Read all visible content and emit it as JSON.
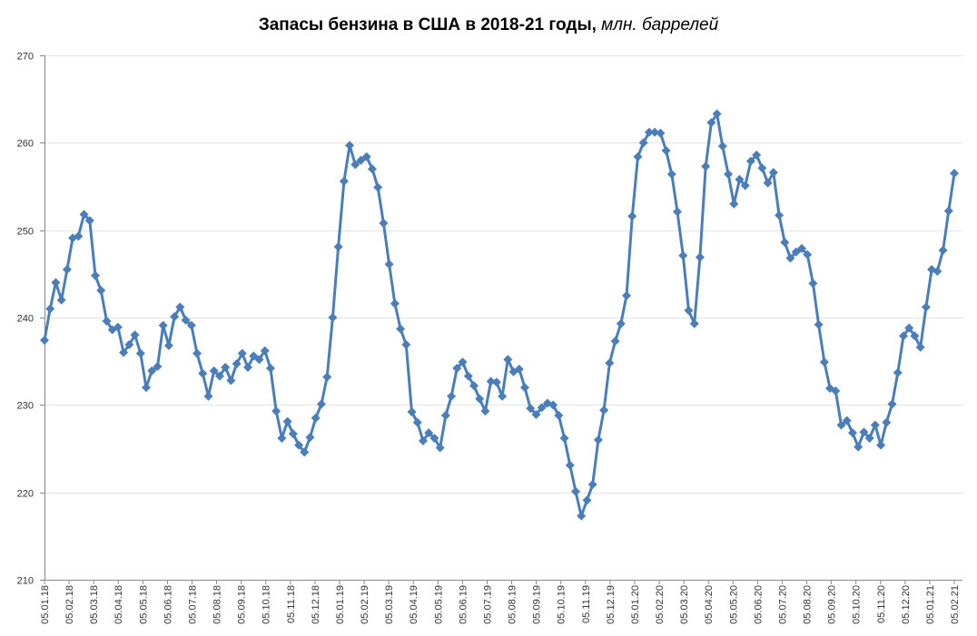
{
  "chart_data": {
    "type": "line",
    "title": "Запасы бензина в США в 2018-21 годы,",
    "title_unit": "млн. баррелей",
    "xlabel": "",
    "ylabel": "",
    "ylim": [
      210,
      270
    ],
    "yticks": [
      210,
      220,
      230,
      240,
      250,
      260,
      270
    ],
    "grid": true,
    "legend": "none",
    "color": "#4a7ebb",
    "marker": "diamond",
    "frequency": "weekly",
    "xticks": [
      "05.01.18",
      "05.02.18",
      "05.03.18",
      "05.04.18",
      "05.05.18",
      "05.06.18",
      "05.07.18",
      "05.08.18",
      "05.09.18",
      "05.10.18",
      "05.11.18",
      "05.12.18",
      "05.01.19",
      "05.02.19",
      "05.03.19",
      "05.04.19",
      "05.05.19",
      "05.06.19",
      "05.07.19",
      "05.08.19",
      "05.09.19",
      "05.10.19",
      "05.11.19",
      "05.12.19",
      "05.01.20",
      "05.02.20",
      "05.03.20",
      "05.04.20",
      "05.05.20",
      "05.06.20",
      "05.07.20",
      "05.08.20",
      "05.09.20",
      "05.10.20",
      "05.11.20",
      "05.12.20",
      "05.01.21",
      "05.02.21"
    ],
    "series": [
      {
        "name": "Запасы бензина",
        "values": [
          237.4,
          241,
          244,
          242,
          245.5,
          249.1,
          249.3,
          251.8,
          251.1,
          244.8,
          243.1,
          239.6,
          238.6,
          238.9,
          236,
          236.9,
          238,
          235.9,
          232,
          233.9,
          234.4,
          239.1,
          236.8,
          240.1,
          241.2,
          239.7,
          239.1,
          235.9,
          233.6,
          231,
          233.9,
          233.3,
          234.3,
          232.8,
          234.7,
          235.9,
          234.3,
          235.6,
          235.2,
          236.2,
          234.2,
          229.3,
          226.2,
          228.1,
          226.7,
          225.4,
          224.6,
          226.3,
          228.5,
          230.1,
          233.2,
          240,
          248.1,
          255.6,
          259.7,
          257.5,
          258,
          258.4,
          257,
          254.9,
          250.8,
          246.1,
          241.6,
          238.7,
          236.9,
          229.2,
          228,
          225.9,
          226.8,
          226.2,
          225.1,
          228.8,
          231,
          234.2,
          234.9,
          233.3,
          232.2,
          230.7,
          229.3,
          232.7,
          232.6,
          231,
          235.2,
          233.8,
          234.1,
          232,
          229.6,
          228.9,
          229.7,
          230.2,
          230,
          228.8,
          226.2,
          223.1,
          220.1,
          217.3,
          219.1,
          220.9,
          226,
          229.4,
          234.8,
          237.3,
          239.3,
          242.5,
          251.6,
          258.4,
          260,
          261.2,
          261.2,
          261.1,
          259.1,
          256.4,
          252.1,
          247.1,
          240.8,
          239.3,
          246.9,
          257.3,
          262.3,
          263.3,
          259.6,
          256.4,
          253,
          255.8,
          255.1,
          257.9,
          258.6,
          257.1,
          255.4,
          256.6,
          251.7,
          248.6,
          246.8,
          247.5,
          247.9,
          247.2,
          243.9,
          239.2,
          234.9,
          231.9,
          231.6,
          227.7,
          228.2,
          226.8,
          225.2,
          226.9,
          226.2,
          227.7,
          225.4,
          228,
          230.1,
          233.7,
          237.9,
          238.8,
          237.9,
          236.6,
          241.2,
          245.5,
          245.3,
          247.7,
          252.2,
          256.5
        ]
      }
    ]
  }
}
